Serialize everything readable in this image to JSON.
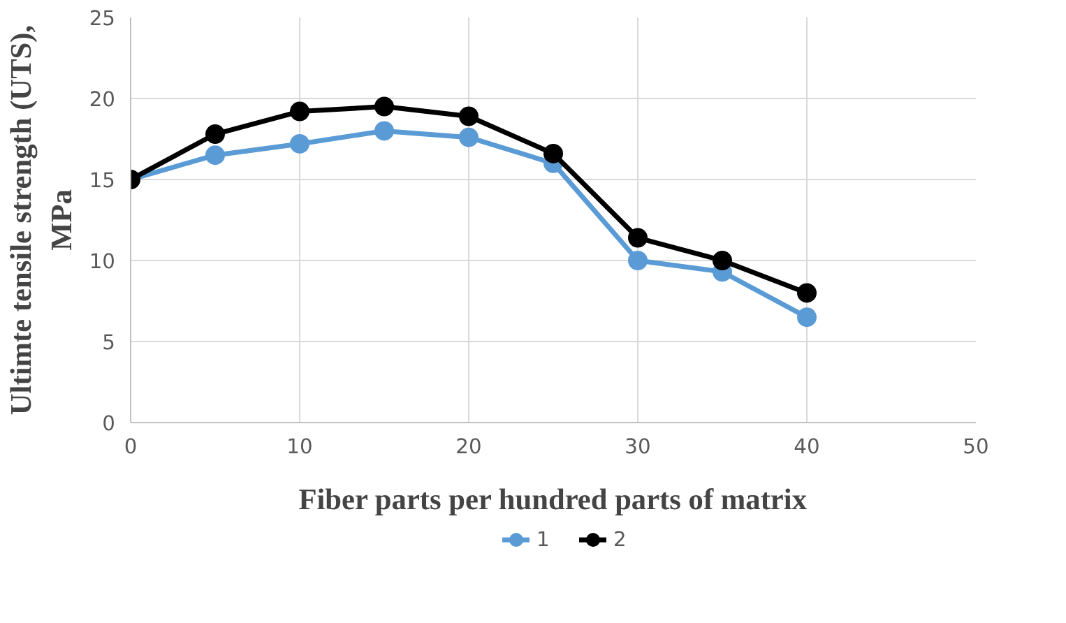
{
  "chart_data": {
    "type": "line",
    "xlabel": "Fiber parts per hundred parts of matrix",
    "ylabel": "Ultimte tensile strength (UTS),\nMPa",
    "x": [
      0,
      5,
      10,
      15,
      20,
      25,
      30,
      35,
      40
    ],
    "series": [
      {
        "name": "1",
        "color": "#5b9bd5",
        "values": [
          15,
          16.5,
          17.2,
          18,
          17.6,
          16,
          10,
          9.3,
          6.5
        ]
      },
      {
        "name": "2",
        "color": "#000000",
        "values": [
          15,
          17.8,
          19.2,
          19.5,
          18.9,
          16.6,
          11.4,
          10,
          8
        ]
      }
    ],
    "xlim": [
      0,
      50
    ],
    "xticks": [
      0,
      10,
      20,
      30,
      40,
      50
    ],
    "ylim": [
      0,
      25
    ],
    "yticks": [
      0,
      5,
      10,
      15,
      20,
      25
    ],
    "grid": true,
    "legend": "bottom",
    "marker": "circle",
    "line_style": "solid"
  }
}
